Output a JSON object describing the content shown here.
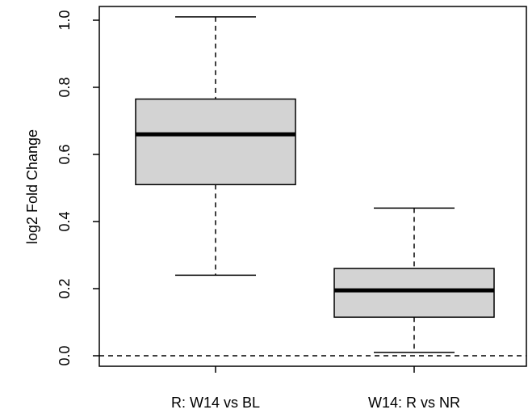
{
  "chart_data": {
    "type": "boxplot",
    "title": "",
    "xlabel": "",
    "ylabel": "log2 Fold Change",
    "ylim": [
      -0.03,
      1.03
    ],
    "yticks": [
      0.0,
      0.2,
      0.4,
      0.6,
      0.8,
      1.0
    ],
    "ytick_labels": [
      "0.0",
      "0.2",
      "0.4",
      "0.6",
      "0.8",
      "1.0"
    ],
    "categories": [
      "R: W14 vs BL",
      "W14: R vs NR"
    ],
    "boxes": [
      {
        "category": "R: W14 vs BL",
        "whisker_low": 0.24,
        "q1": 0.51,
        "median": 0.66,
        "q3": 0.765,
        "whisker_high": 1.01
      },
      {
        "category": "W14: R vs NR",
        "whisker_low": 0.01,
        "q1": 0.115,
        "median": 0.195,
        "q3": 0.26,
        "whisker_high": 0.44
      }
    ],
    "reference_line": {
      "y": 0.0,
      "style": "dashed"
    },
    "box_fill": "#d3d3d3",
    "line_color": "#000000",
    "grid": false,
    "legend": "none"
  }
}
